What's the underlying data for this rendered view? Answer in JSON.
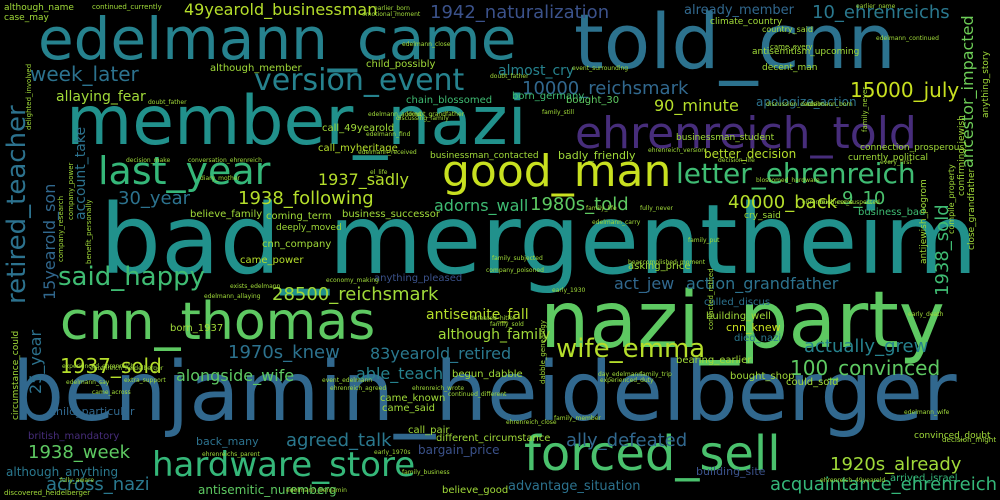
{
  "words": [
    {
      "text": "bad_mergentheim",
      "color": "#21918c"
    },
    {
      "text": "benjamin_heidelberger",
      "color": "#31688e"
    },
    {
      "text": "nazi_party",
      "color": "#5ec962"
    },
    {
      "text": "member_nazi",
      "color": "#21918c"
    },
    {
      "text": "edelmann_came",
      "color": "#26828e"
    },
    {
      "text": "told_cnn",
      "color": "#2c728e"
    },
    {
      "text": "cnn_thomas",
      "color": "#5ec962"
    },
    {
      "text": "forced_sell",
      "color": "#4ac16d"
    },
    {
      "text": "hardware_store",
      "color": "#35b779"
    },
    {
      "text": "good_man",
      "color": "#c8e020"
    },
    {
      "text": "ehrenreich_told",
      "color": "#472d7b"
    },
    {
      "text": "last_year",
      "color": "#35b779"
    },
    {
      "text": "letter_ehrenreich",
      "color": "#3fbc73"
    },
    {
      "text": "version_event",
      "color": "#26828e"
    },
    {
      "text": "wife_emma",
      "color": "#b5de2b"
    },
    {
      "text": "said_happy",
      "color": "#3fbc73"
    },
    {
      "text": "retired_teacher",
      "color": "#2c728e"
    },
    {
      "text": "28500_reichsmark",
      "color": "#a0da39"
    },
    {
      "text": "100_convinced",
      "color": "#5ec962"
    },
    {
      "text": "1937_sold",
      "color": "#b5de2b"
    },
    {
      "text": "49yearold_businessman",
      "color": "#b5de2b"
    },
    {
      "text": "10_ehrenreichs",
      "color": "#2a788e"
    },
    {
      "text": "week_later",
      "color": "#2c728e"
    },
    {
      "text": "1942_naturalization",
      "color": "#3b528b"
    },
    {
      "text": "10000_reichsmark",
      "color": "#31688e"
    },
    {
      "text": "15000_july",
      "color": "#c8e020"
    },
    {
      "text": "acquaintance_ehrenreich",
      "color": "#35b779"
    },
    {
      "text": "1920s_already",
      "color": "#a0da39"
    },
    {
      "text": "1938_week",
      "color": "#5ec962"
    },
    {
      "text": "agreed_talk",
      "color": "#2a788e"
    },
    {
      "text": "ally_defeated",
      "color": "#31688e"
    },
    {
      "text": "across_nazi",
      "color": "#2a788e"
    },
    {
      "text": "act_jew",
      "color": "#31688e"
    },
    {
      "text": "action_grandfather",
      "color": "#2c728e"
    },
    {
      "text": "actually_grew",
      "color": "#26828e"
    },
    {
      "text": "1970s_knew",
      "color": "#2c728e"
    },
    {
      "text": "83yearold_retired",
      "color": "#2a788e"
    },
    {
      "text": "alongside_wife",
      "color": "#5ec962"
    },
    {
      "text": "able_teach",
      "color": "#26828e"
    },
    {
      "text": "1937_sadly",
      "color": "#b5de2b"
    },
    {
      "text": "1938_following",
      "color": "#b5de2b"
    },
    {
      "text": "adorns_wall",
      "color": "#3fbc73"
    },
    {
      "text": "1980s_told",
      "color": "#5ec962"
    },
    {
      "text": "40000_back",
      "color": "#b5de2b"
    },
    {
      "text": "9_10",
      "color": "#4ac16d"
    },
    {
      "text": "30_year",
      "color": "#2c728e"
    },
    {
      "text": "15yearold_son",
      "color": "#31688e"
    },
    {
      "text": "account_take",
      "color": "#2c728e"
    },
    {
      "text": "1938_sold",
      "color": "#3fbc73"
    },
    {
      "text": "almost_cry",
      "color": "#26828e"
    },
    {
      "text": "90_minute",
      "color": "#b5de2b"
    },
    {
      "text": "apologize_action",
      "color": "#2c728e"
    },
    {
      "text": "ancestor_impacted",
      "color": "#6ece58"
    },
    {
      "text": "allaying_fear",
      "color": "#a0da39"
    },
    {
      "text": "already_member",
      "color": "#31688e"
    },
    {
      "text": "antisemite_fall",
      "color": "#b5de2b"
    },
    {
      "text": "although_family",
      "color": "#a0da39"
    },
    {
      "text": "antisemitic_nuremberg",
      "color": "#5ec962"
    },
    {
      "text": "advantage_situation",
      "color": "#2c728e"
    },
    {
      "text": "25_year",
      "color": "#2c728e"
    },
    {
      "text": "although_anything",
      "color": "#2a788e"
    },
    {
      "text": "chain_blossomed",
      "color": "#3fbc73"
    },
    {
      "text": "cnn_knew",
      "color": "#c8e020"
    },
    {
      "text": "building_site",
      "color": "#3b528b"
    },
    {
      "text": "although_member",
      "color": "#a0da39"
    },
    {
      "text": "born_germany",
      "color": "#3fbc73"
    },
    {
      "text": "bought_30",
      "color": "#5ec962"
    },
    {
      "text": "better_decision",
      "color": "#b5de2b"
    },
    {
      "text": "badly_friendly",
      "color": "#a0da39"
    },
    {
      "text": "arrived_israel",
      "color": "#35b779"
    },
    {
      "text": "believe_good",
      "color": "#a0da39"
    },
    {
      "text": "call_pair",
      "color": "#a0da39"
    },
    {
      "text": "came_known",
      "color": "#a0da39"
    },
    {
      "text": "came_said",
      "color": "#a0da39"
    },
    {
      "text": "begun_dabble",
      "color": "#a0da39"
    },
    {
      "text": "bearing_earlier",
      "color": "#a0da39"
    },
    {
      "text": "born_1937",
      "color": "#a0da39"
    },
    {
      "text": "building_well",
      "color": "#a0da39"
    },
    {
      "text": "bought_shop",
      "color": "#a0da39"
    },
    {
      "text": "could_sold",
      "color": "#a0da39"
    },
    {
      "text": "different_circumstance",
      "color": "#a0da39"
    },
    {
      "text": "bargain_price",
      "color": "#3b528b"
    },
    {
      "text": "back_many",
      "color": "#2c728e"
    },
    {
      "text": "child_particular",
      "color": "#31688e"
    },
    {
      "text": "call_myheritage",
      "color": "#b5de2b"
    },
    {
      "text": "call_49yearold",
      "color": "#a0da39"
    },
    {
      "text": "child_possibly",
      "color": "#a0da39"
    },
    {
      "text": "cnn_company",
      "color": "#a0da39"
    },
    {
      "text": "came_power",
      "color": "#b5de2b"
    },
    {
      "text": "coming_term",
      "color": "#a0da39"
    },
    {
      "text": "business_bad",
      "color": "#3fbc73"
    },
    {
      "text": "business_successor",
      "color": "#a0da39"
    },
    {
      "text": "believe_family",
      "color": "#a0da39"
    },
    {
      "text": "deeply_moved",
      "color": "#a0da39"
    },
    {
      "text": "anything_pleased",
      "color": "#3b528b"
    },
    {
      "text": "asking_price",
      "color": "#a0da39"
    },
    {
      "text": "called_discus",
      "color": "#2c728e"
    },
    {
      "text": "died_nazi",
      "color": "#2a788e"
    },
    {
      "text": "although_name",
      "color": "#a0da39"
    },
    {
      "text": "continued_currently",
      "color": "#a0da39"
    },
    {
      "text": "case_may",
      "color": "#a0da39"
    },
    {
      "text": "earlier_born",
      "color": "#a0da39"
    },
    {
      "text": "climate_country",
      "color": "#a0da39"
    },
    {
      "text": "country_said",
      "color": "#a0da39"
    },
    {
      "text": "antisemitism_upcoming",
      "color": "#a0da39"
    },
    {
      "text": "came_every",
      "color": "#a0da39"
    },
    {
      "text": "decent_man",
      "color": "#a0da39"
    },
    {
      "text": "businessman_student",
      "color": "#a0da39"
    },
    {
      "text": "businessman_contacted",
      "color": "#a0da39"
    },
    {
      "text": "currently_political",
      "color": "#a0da39"
    },
    {
      "text": "connection_prosperous",
      "color": "#a0da39"
    },
    {
      "text": "cry_said",
      "color": "#a0da39"
    },
    {
      "text": "circumstance_could",
      "color": "#a0da39"
    },
    {
      "text": "british_mandatory",
      "color": "#472d7b"
    },
    {
      "text": "convinced_doubt",
      "color": "#a0da39"
    },
    {
      "text": "decision_might",
      "color": "#a0da39"
    },
    {
      "text": "discovered_heidelberger",
      "color": "#a0da39"
    },
    {
      "text": "company_power",
      "color": "#a0da39"
    },
    {
      "text": "antijewish_pogrom",
      "color": "#a0da39"
    },
    {
      "text": "confirming_jewish",
      "color": "#a0da39"
    },
    {
      "text": "anything_story",
      "color": "#a0da39"
    },
    {
      "text": "close_grandfather",
      "color": "#a0da39"
    },
    {
      "text": "delighted_involved",
      "color": "#a0da39"
    },
    {
      "text": "company_research",
      "color": "#a0da39"
    },
    {
      "text": "benefit_personally",
      "color": "#a0da39"
    },
    {
      "text": "contacted_retired",
      "color": "#a0da39"
    },
    {
      "text": "compile_property",
      "color": "#a0da39"
    },
    {
      "text": "dabble_genealogy",
      "color": "#a0da39"
    },
    {
      "text": "decision_make",
      "color": "#a0da39"
    },
    {
      "text": "conversation_ehrenreich",
      "color": "#a0da39"
    },
    {
      "text": "decision_life",
      "color": "#a0da39"
    },
    {
      "text": "diary_mother",
      "color": "#a0da39"
    },
    {
      "text": "blossomed_hardware",
      "color": "#a0da39"
    },
    {
      "text": "company_poisoned",
      "color": "#a0da39"
    },
    {
      "text": "defeated_hitler",
      "color": "#a0da39"
    },
    {
      "text": "edelmann_say",
      "color": "#a0da39"
    },
    {
      "text": "every_first",
      "color": "#a0da39"
    },
    {
      "text": "edelmann_wife",
      "color": "#a0da39"
    },
    {
      "text": "economy_making",
      "color": "#a0da39"
    },
    {
      "text": "edelmann_received",
      "color": "#a0da39"
    },
    {
      "text": "doubt_grandfather",
      "color": "#a0da39"
    },
    {
      "text": "event_surrounding",
      "color": "#a0da39"
    },
    {
      "text": "experienced_duty",
      "color": "#a0da39"
    },
    {
      "text": "extra_support",
      "color": "#a0da39"
    },
    {
      "text": "family_trip",
      "color": "#a0da39"
    },
    {
      "text": "came_across",
      "color": "#a0da39"
    },
    {
      "text": "early_1970s",
      "color": "#a0da39"
    },
    {
      "text": "edelmann_continued",
      "color": "#a0da39"
    },
    {
      "text": "edelmann_close",
      "color": "#a0da39"
    },
    {
      "text": "earlier_name",
      "color": "#a0da39"
    },
    {
      "text": "event_edelmann",
      "color": "#a0da39"
    },
    {
      "text": "emotional_moment",
      "color": "#a0da39"
    },
    {
      "text": "ehrenreich_close",
      "color": "#a0da39"
    },
    {
      "text": "ehrenreich_version",
      "color": "#a0da39"
    },
    {
      "text": "ehrenreich_agreed",
      "color": "#a0da39"
    },
    {
      "text": "continued_different",
      "color": "#a0da39"
    },
    {
      "text": "discussing_family",
      "color": "#a0da39"
    },
    {
      "text": "doubt_father",
      "color": "#a0da39"
    },
    {
      "text": "family_never",
      "color": "#a0da39"
    },
    {
      "text": "family_member",
      "color": "#a0da39"
    },
    {
      "text": "family_still",
      "color": "#a0da39"
    },
    {
      "text": "family_life",
      "color": "#a0da39"
    },
    {
      "text": "family_subjected",
      "color": "#a0da39"
    },
    {
      "text": "fully_aware",
      "color": "#a0da39"
    },
    {
      "text": "exists_edelmann",
      "color": "#a0da39"
    },
    {
      "text": "edelmann_born",
      "color": "#a0da39"
    },
    {
      "text": "edelmann_benjamin",
      "color": "#a0da39"
    },
    {
      "text": "edelmann_adorns",
      "color": "#a0da39"
    },
    {
      "text": "edelmann_find",
      "color": "#a0da39"
    },
    {
      "text": "ehrenreich_wrote",
      "color": "#a0da39"
    },
    {
      "text": "ehrenreich_49yearold",
      "color": "#a0da39"
    },
    {
      "text": "el_life",
      "color": "#a0da39"
    },
    {
      "text": "early_1930",
      "color": "#a0da39"
    },
    {
      "text": "family_sold",
      "color": "#a0da39"
    },
    {
      "text": "family_put",
      "color": "#a0da39"
    },
    {
      "text": "edelmann_carry",
      "color": "#a0da39"
    },
    {
      "text": "ehrenreichs_parent",
      "color": "#a0da39"
    },
    {
      "text": "edelmann_allaying",
      "color": "#a0da39"
    },
    {
      "text": "experienced_ehrenreich",
      "color": "#a0da39"
    },
    {
      "text": "ehrenreich_heidelberger",
      "color": "#a0da39"
    },
    {
      "text": "family_business",
      "color": "#a0da39"
    },
    {
      "text": "early_death",
      "color": "#a0da39"
    },
    {
      "text": "day_edelmann",
      "color": "#a0da39"
    },
    {
      "text": "ehrenreich_come",
      "color": "#a0da39"
    },
    {
      "text": "doubt_father",
      "color": "#a0da39"
    },
    {
      "text": "beaccomplished_moment",
      "color": "#a0da39"
    },
    {
      "text": "discussion_decision",
      "color": "#a0da39"
    },
    {
      "text": "business_suspected",
      "color": "#a0da39"
    },
    {
      "text": "fully_never",
      "color": "#a0da39"
    }
  ]
}
